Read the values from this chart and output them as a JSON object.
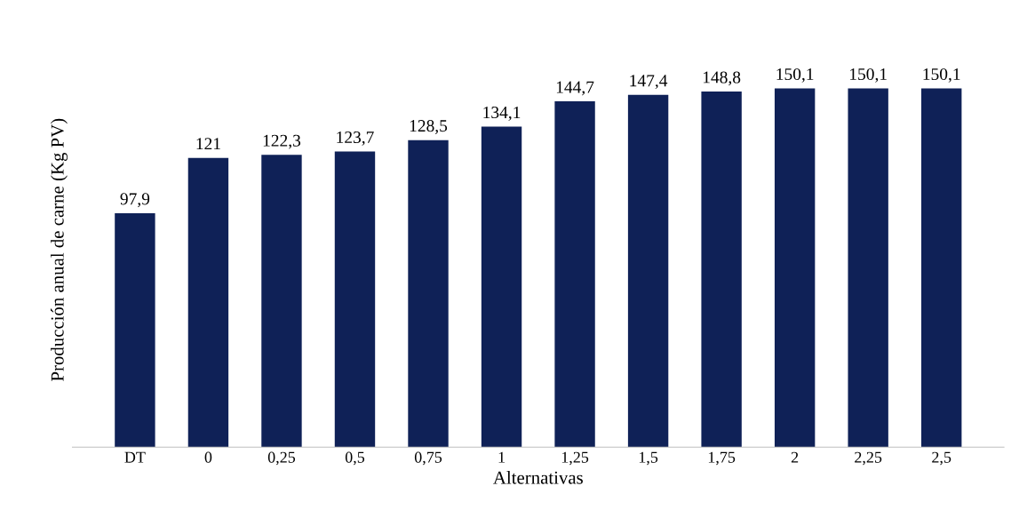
{
  "chart_data": {
    "type": "bar",
    "xlabel": "Alternativas",
    "ylabel": "Producción anual de carne (Kg PV)",
    "categories": [
      "DT",
      "0",
      "0,25",
      "0,5",
      "0,75",
      "1",
      "1,25",
      "1,5",
      "1,75",
      "2",
      "2,25",
      "2,5"
    ],
    "values": [
      97.9,
      121,
      122.3,
      123.7,
      128.5,
      134.1,
      144.7,
      147.4,
      148.8,
      150.1,
      150.1,
      150.1
    ],
    "value_labels": [
      "97,9",
      "121",
      "122,3",
      "123,7",
      "128,5",
      "134,1",
      "144,7",
      "147,4",
      "148,8",
      "150,1",
      "150,1",
      "150,1"
    ],
    "color": "#0f2157",
    "tick_labels": "x",
    "grid": false
  }
}
